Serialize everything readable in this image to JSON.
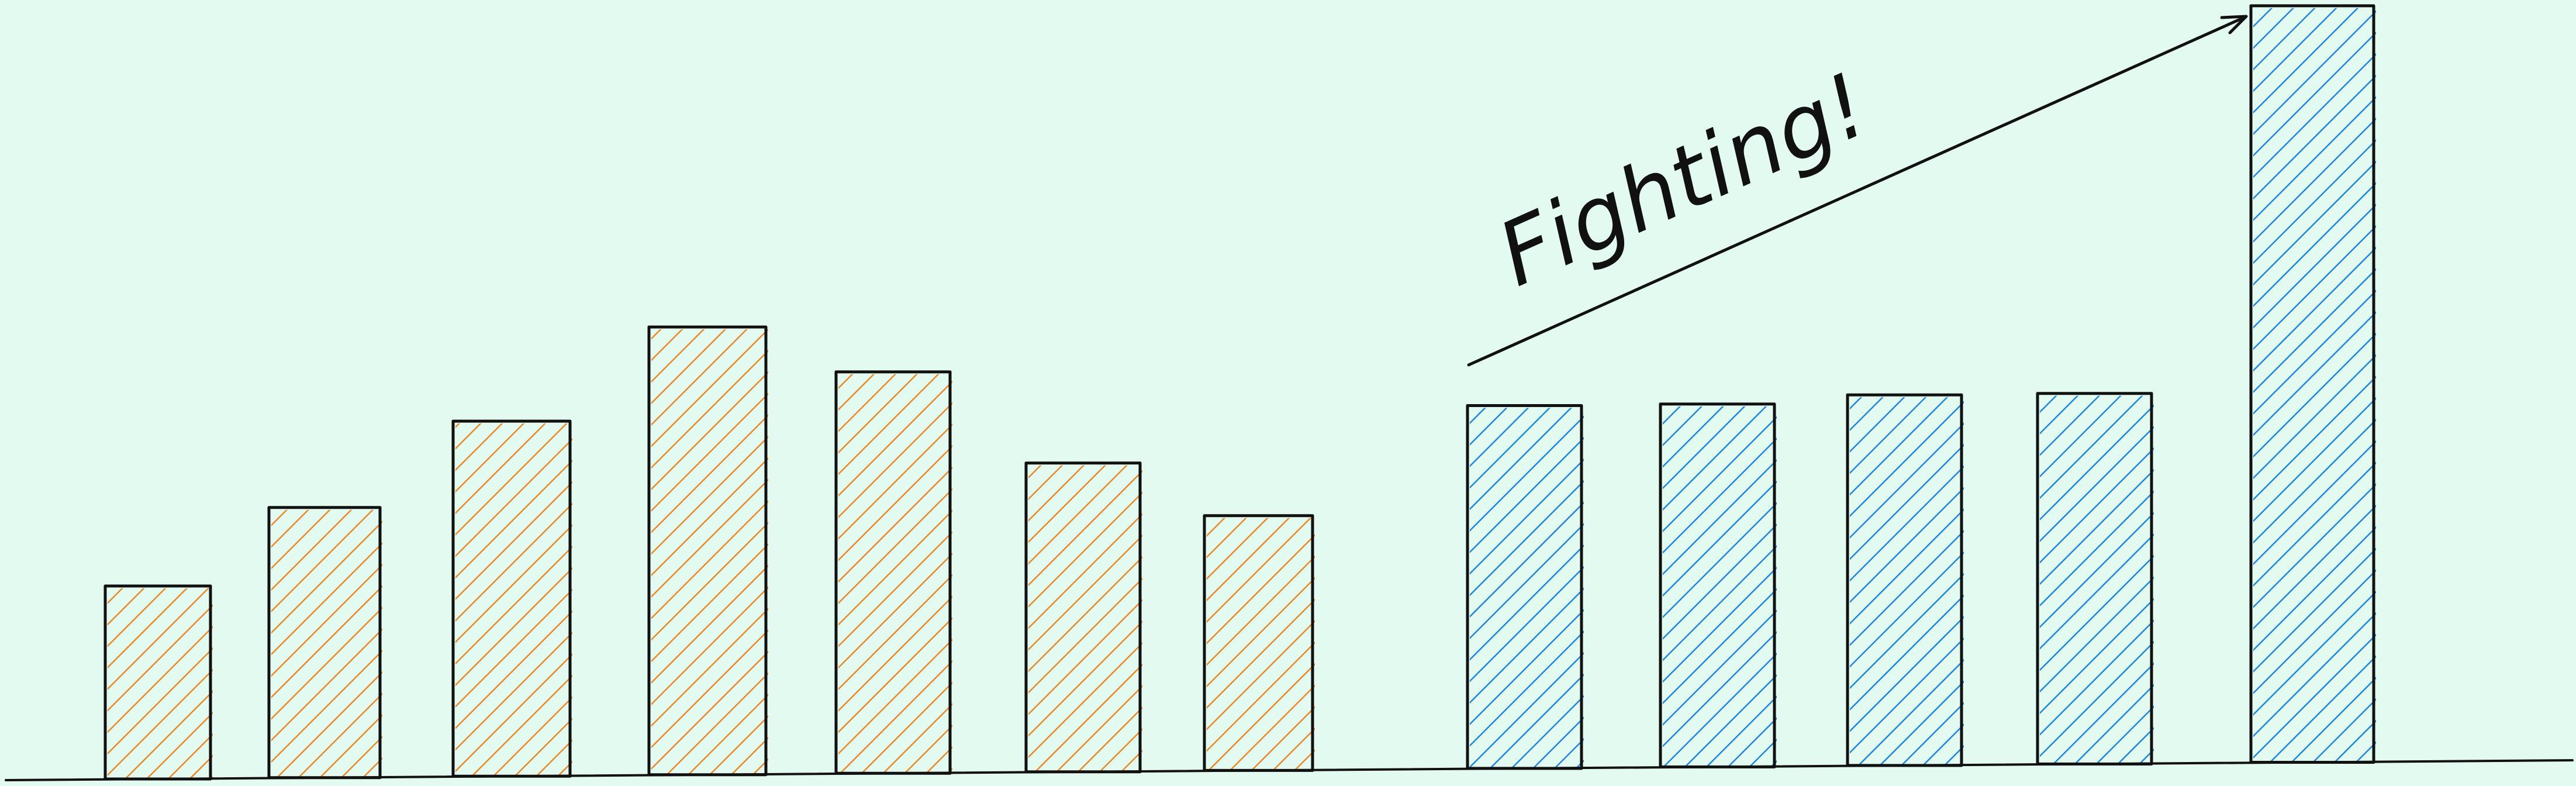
{
  "chart_data": {
    "type": "bar",
    "title": "",
    "xlabel": "",
    "ylabel": "",
    "ylim": [
      0,
      100
    ],
    "grid": false,
    "legend": "none",
    "series": [
      {
        "color": "#e8892a",
        "values": [
          25,
          35,
          46,
          58,
          52,
          40,
          33
        ]
      },
      {
        "color": "#1e87db",
        "values": [
          47,
          47,
          48,
          48,
          98
        ]
      }
    ],
    "annotation": {
      "text": "Fighting!"
    }
  },
  "colors": {
    "background": "#e3faf1",
    "ink": "#111111"
  }
}
